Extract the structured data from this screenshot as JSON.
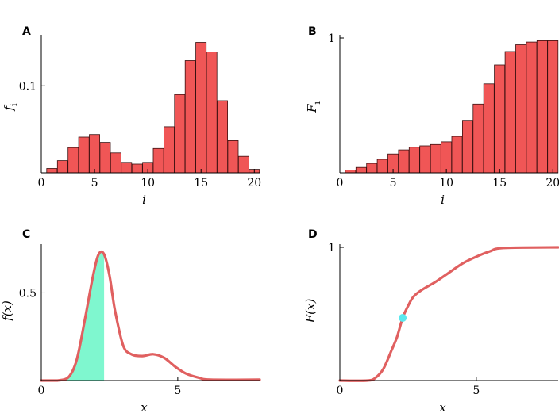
{
  "chart_data": [
    {
      "panel": "A",
      "type": "bar",
      "xlabel": "i",
      "ylabel": "f",
      "ylabel_sub": "i",
      "xlim": [
        0,
        20.5
      ],
      "ylim": [
        0,
        0.155
      ],
      "xticks": [
        0,
        5,
        10,
        15,
        20
      ],
      "yticks": [
        0.1
      ],
      "categories": [
        1,
        2,
        3,
        4,
        5,
        6,
        7,
        8,
        9,
        10,
        11,
        12,
        13,
        14,
        15,
        16,
        17,
        18,
        19,
        20
      ],
      "values": [
        0.005,
        0.014,
        0.029,
        0.041,
        0.044,
        0.035,
        0.023,
        0.012,
        0.01,
        0.012,
        0.028,
        0.053,
        0.09,
        0.129,
        0.15,
        0.139,
        0.083,
        0.037,
        0.019,
        0.004
      ]
    },
    {
      "panel": "B",
      "type": "bar",
      "xlabel": "i",
      "ylabel": "F",
      "ylabel_sub": "i",
      "xlim": [
        0,
        20.5
      ],
      "ylim": [
        0,
        1
      ],
      "xticks": [
        0,
        5,
        10,
        15,
        20
      ],
      "yticks": [
        1
      ],
      "categories": [
        1,
        2,
        3,
        4,
        5,
        6,
        7,
        8,
        9,
        10,
        11,
        12,
        13,
        14,
        15,
        16,
        17,
        18,
        19,
        20
      ],
      "values": [
        0.02,
        0.04,
        0.07,
        0.1,
        0.14,
        0.17,
        0.19,
        0.2,
        0.21,
        0.23,
        0.27,
        0.39,
        0.51,
        0.66,
        0.8,
        0.9,
        0.95,
        0.97,
        0.98,
        0.98
      ]
    },
    {
      "panel": "C",
      "type": "area",
      "xlabel": "x",
      "ylabel": "f(x)",
      "xlim": [
        0,
        8
      ],
      "ylim": [
        0,
        0.76
      ],
      "xticks": [
        0,
        5
      ],
      "yticks": [
        0.5
      ],
      "shade_to_x": 2.3,
      "x": [
        0.6,
        1.0,
        1.3,
        1.6,
        1.9,
        2.1,
        2.3,
        2.5,
        2.7,
        3.0,
        3.3,
        3.7,
        4.1,
        4.5,
        4.9,
        5.3,
        5.8,
        6.2,
        8.0
      ],
      "y": [
        0.0,
        0.02,
        0.12,
        0.35,
        0.6,
        0.72,
        0.72,
        0.6,
        0.4,
        0.2,
        0.15,
        0.14,
        0.15,
        0.13,
        0.08,
        0.04,
        0.015,
        0.005,
        0.005
      ]
    },
    {
      "panel": "D",
      "type": "line",
      "xlabel": "x",
      "ylabel": "F(x)",
      "xlim": [
        0,
        8
      ],
      "ylim": [
        0,
        1
      ],
      "xticks": [
        0,
        5
      ],
      "yticks": [
        1
      ],
      "marker": {
        "x": 2.3,
        "y": 0.47
      },
      "x": [
        0.0,
        1.0,
        1.3,
        1.6,
        1.9,
        2.1,
        2.3,
        2.5,
        2.7,
        3.0,
        3.5,
        4.0,
        4.5,
        5.0,
        5.5,
        6.0,
        8.0
      ],
      "y": [
        0.0,
        0.0,
        0.02,
        0.09,
        0.23,
        0.33,
        0.47,
        0.56,
        0.63,
        0.68,
        0.74,
        0.81,
        0.88,
        0.93,
        0.97,
        0.995,
        1.0
      ]
    }
  ]
}
